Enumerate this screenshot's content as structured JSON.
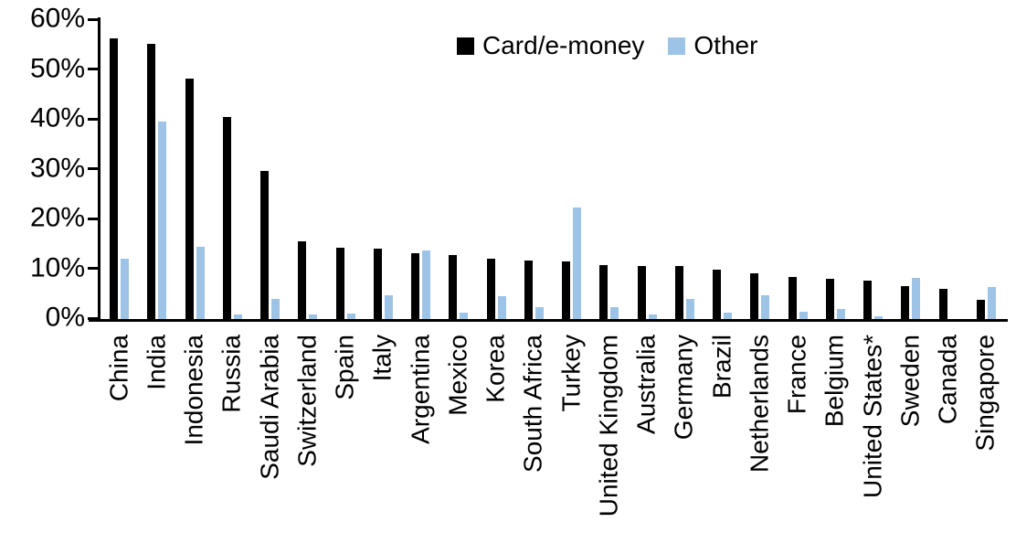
{
  "chart_data": {
    "type": "bar",
    "title": "",
    "xlabel": "",
    "ylabel": "",
    "ylim": [
      0,
      60
    ],
    "ytick_step": 10,
    "ytick_labels": [
      "0%",
      "10%",
      "20%",
      "30%",
      "40%",
      "50%",
      "60%"
    ],
    "grid": false,
    "legend_position": "top-center",
    "categories": [
      "China",
      "India",
      "Indonesia",
      "Russia",
      "Saudi Arabia",
      "Switzerland",
      "Spain",
      "Italy",
      "Argentina",
      "Mexico",
      "Korea",
      "South Africa",
      "Turkey",
      "United Kingdom",
      "Australia",
      "Germany",
      "Brazil",
      "Netherlands",
      "France",
      "Belgium",
      "United States*",
      "Sweden",
      "Canada",
      "Singapore"
    ],
    "series": [
      {
        "name": "Card/e-money",
        "color": "#000000",
        "values": [
          56.3,
          55.2,
          48.3,
          40.5,
          29.8,
          15.7,
          14.3,
          14.2,
          13.3,
          12.9,
          12.2,
          11.8,
          11.5,
          10.9,
          10.7,
          10.6,
          9.9,
          9.2,
          8.5,
          8.0,
          7.8,
          6.6,
          6.0,
          3.9
        ]
      },
      {
        "name": "Other",
        "color": "#9DC3E6",
        "values": [
          12.2,
          39.7,
          14.6,
          1.0,
          4.0,
          0.9,
          1.1,
          4.7,
          13.8,
          1.3,
          4.6,
          2.4,
          22.5,
          2.3,
          1.0,
          4.0,
          1.2,
          4.7,
          1.5,
          2.0,
          0.6,
          8.2,
          0.0,
          6.5
        ]
      }
    ]
  }
}
